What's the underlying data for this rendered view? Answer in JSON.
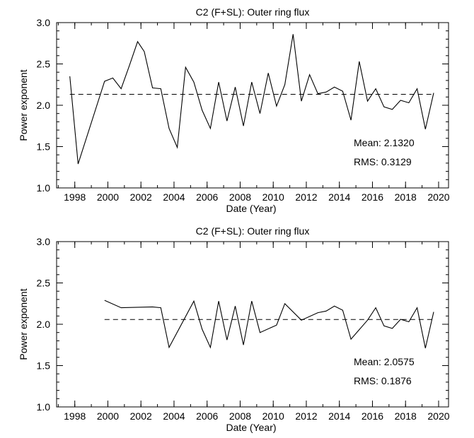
{
  "chart_data": [
    {
      "type": "line",
      "title": "C2 (F+SL): Outer ring flux",
      "xlabel": "Date (Year)",
      "ylabel": "Power exponent",
      "xlim": [
        1996.9,
        2020.6
      ],
      "ylim": [
        1.0,
        3.0
      ],
      "xticks": [
        1998,
        2000,
        2002,
        2004,
        2006,
        2008,
        2010,
        2012,
        2014,
        2016,
        2018,
        2020
      ],
      "yticks": [
        1.0,
        1.5,
        2.0,
        2.5,
        3.0
      ],
      "ytick_labels": [
        "1.0",
        "1.5",
        "2.0",
        "2.5",
        "3.0"
      ],
      "mean_line": 2.132,
      "stats": {
        "mean_text": "Mean: 2.1320",
        "rms_text": "RMS: 0.3129"
      },
      "series": [
        {
          "name": "Power exponent",
          "x": [
            1997.7,
            1998.2,
            1999.8,
            2000.3,
            2000.8,
            2001.3,
            2001.8,
            2002.2,
            2002.7,
            2003.2,
            2003.7,
            2004.2,
            2004.7,
            2005.2,
            2005.7,
            2006.2,
            2006.7,
            2007.2,
            2007.7,
            2008.2,
            2008.7,
            2009.2,
            2009.7,
            2010.2,
            2010.7,
            2011.2,
            2011.7,
            2012.2,
            2012.7,
            2013.2,
            2013.7,
            2014.2,
            2014.7,
            2015.2,
            2015.7,
            2016.2,
            2016.7,
            2017.2,
            2017.7,
            2018.2,
            2018.7,
            2019.2,
            2019.7
          ],
          "values": [
            2.35,
            1.29,
            2.29,
            2.33,
            2.2,
            2.48,
            2.77,
            2.65,
            2.21,
            2.2,
            1.72,
            1.49,
            2.46,
            2.28,
            1.94,
            1.72,
            2.28,
            1.81,
            2.22,
            1.75,
            2.28,
            1.9,
            2.39,
            1.99,
            2.25,
            2.86,
            2.05,
            2.37,
            2.14,
            2.16,
            2.22,
            2.17,
            1.82,
            2.53,
            2.05,
            2.2,
            1.98,
            1.95,
            2.06,
            2.03,
            2.2,
            1.71,
            2.15
          ]
        }
      ]
    },
    {
      "type": "line",
      "title": "C2 (F+SL): Outer ring flux",
      "xlabel": "Date (Year)",
      "ylabel": "Power exponent",
      "xlim": [
        1996.9,
        2020.6
      ],
      "ylim": [
        1.0,
        3.0
      ],
      "xticks": [
        1998,
        2000,
        2002,
        2004,
        2006,
        2008,
        2010,
        2012,
        2014,
        2016,
        2018,
        2020
      ],
      "yticks": [
        1.0,
        1.5,
        2.0,
        2.5,
        3.0
      ],
      "ytick_labels": [
        "1.0",
        "1.5",
        "2.0",
        "2.5",
        "3.0"
      ],
      "mean_line": 2.0575,
      "stats": {
        "mean_text": "Mean: 2.0575",
        "rms_text": "RMS: 0.1876"
      },
      "series": [
        {
          "name": "Power exponent",
          "x": [
            1999.8,
            2000.8,
            2002.7,
            2003.2,
            2003.7,
            2005.2,
            2005.7,
            2006.2,
            2006.7,
            2007.2,
            2007.7,
            2008.2,
            2008.7,
            2009.2,
            2010.2,
            2010.7,
            2011.7,
            2012.7,
            2013.2,
            2013.7,
            2014.2,
            2014.7,
            2015.7,
            2016.2,
            2016.7,
            2017.2,
            2017.7,
            2018.2,
            2018.7,
            2019.2,
            2019.7
          ],
          "values": [
            2.29,
            2.2,
            2.21,
            2.2,
            1.72,
            2.28,
            1.94,
            1.72,
            2.28,
            1.81,
            2.22,
            1.75,
            2.28,
            1.9,
            1.99,
            2.25,
            2.05,
            2.14,
            2.16,
            2.22,
            2.17,
            1.82,
            2.05,
            2.2,
            1.98,
            1.95,
            2.06,
            2.03,
            2.2,
            1.71,
            2.15
          ]
        }
      ]
    }
  ]
}
